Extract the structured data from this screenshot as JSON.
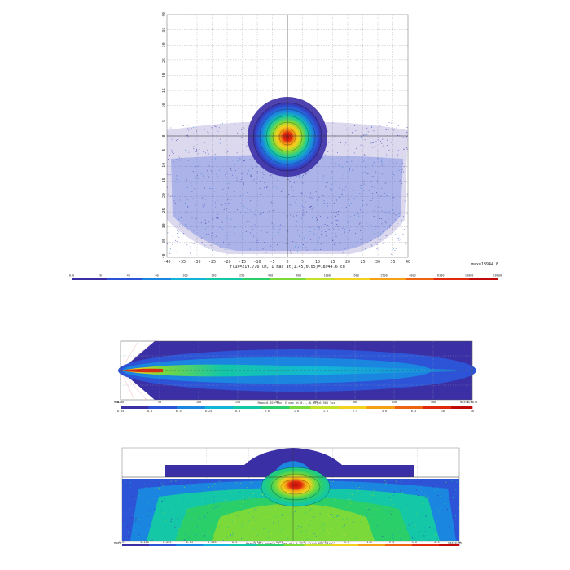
{
  "palette": [
    "#3b2fa6",
    "#2d54d6",
    "#1b86e0",
    "#12b5d6",
    "#14c7a6",
    "#2bcf6a",
    "#7bd93a",
    "#c4e02a",
    "#f2d21e",
    "#f5a015",
    "#ee6312",
    "#e02a10",
    "#c00a08"
  ],
  "chart_data": [
    {
      "type": "heatmap",
      "subtype": "isocandela",
      "xlim": [
        -40,
        40
      ],
      "ylim": [
        -40,
        40
      ],
      "x_ticks": [
        "-40",
        "-35",
        "-30",
        "-25",
        "-20",
        "-15",
        "-10",
        "-5",
        "0",
        "5",
        "10",
        "15",
        "20",
        "25",
        "30",
        "35",
        "40"
      ],
      "y_ticks": [
        "40",
        "35",
        "30",
        "25",
        "20",
        "15",
        "10",
        "5",
        "0",
        "-5",
        "-10",
        "-15",
        "-20",
        "-25",
        "-30",
        "-35",
        "-40"
      ],
      "annotation": "flux=219.776 lm, I max at(1.45,0.05)=18944.6 cd",
      "max_label": "max=18944.6",
      "scale_ticks": [
        "0.0",
        "20",
        "40",
        "60",
        "100",
        "150",
        "250",
        "400",
        "600",
        "1000",
        "1600",
        "2500",
        "4000",
        "6300",
        "10000",
        "16000"
      ],
      "hotspot": {
        "x": 1.45,
        "y": 0.05,
        "value": 18944.6
      }
    },
    {
      "type": "heatmap",
      "subtype": "road-top-view",
      "x_ticks": [
        "0.00",
        "50",
        "100",
        "150",
        "200",
        "250",
        "300",
        "350",
        "400",
        "470.75"
      ],
      "annotation": "Mean=0.391 lux, E max at(0.1,-0.35)=6.964 lux",
      "left_label": "MINT",
      "max_label": "max=6.96",
      "scale_ticks": [
        "0.05",
        "0.1",
        "0.15",
        "0.25",
        "0.4",
        "0.6",
        "1.0",
        "1.6",
        "2.5",
        "4.0",
        "6.3",
        "10",
        "16"
      ]
    },
    {
      "type": "heatmap",
      "subtype": "road-perspective",
      "annotation": "Mean=0.052 cd/m^2, L max at(-0.53,0.42)=0.953 cd/m^2",
      "left_label": "MINT",
      "max_label": "max=0.95",
      "scale_ticks": [
        "0.01",
        "0.016",
        "0.025",
        "0.04",
        "0.063",
        "0.1",
        "0.16",
        "0.25",
        "0.4",
        "0.63",
        "1.0",
        "1.6",
        "2.5",
        "4.0",
        "6.3",
        "10"
      ]
    }
  ]
}
